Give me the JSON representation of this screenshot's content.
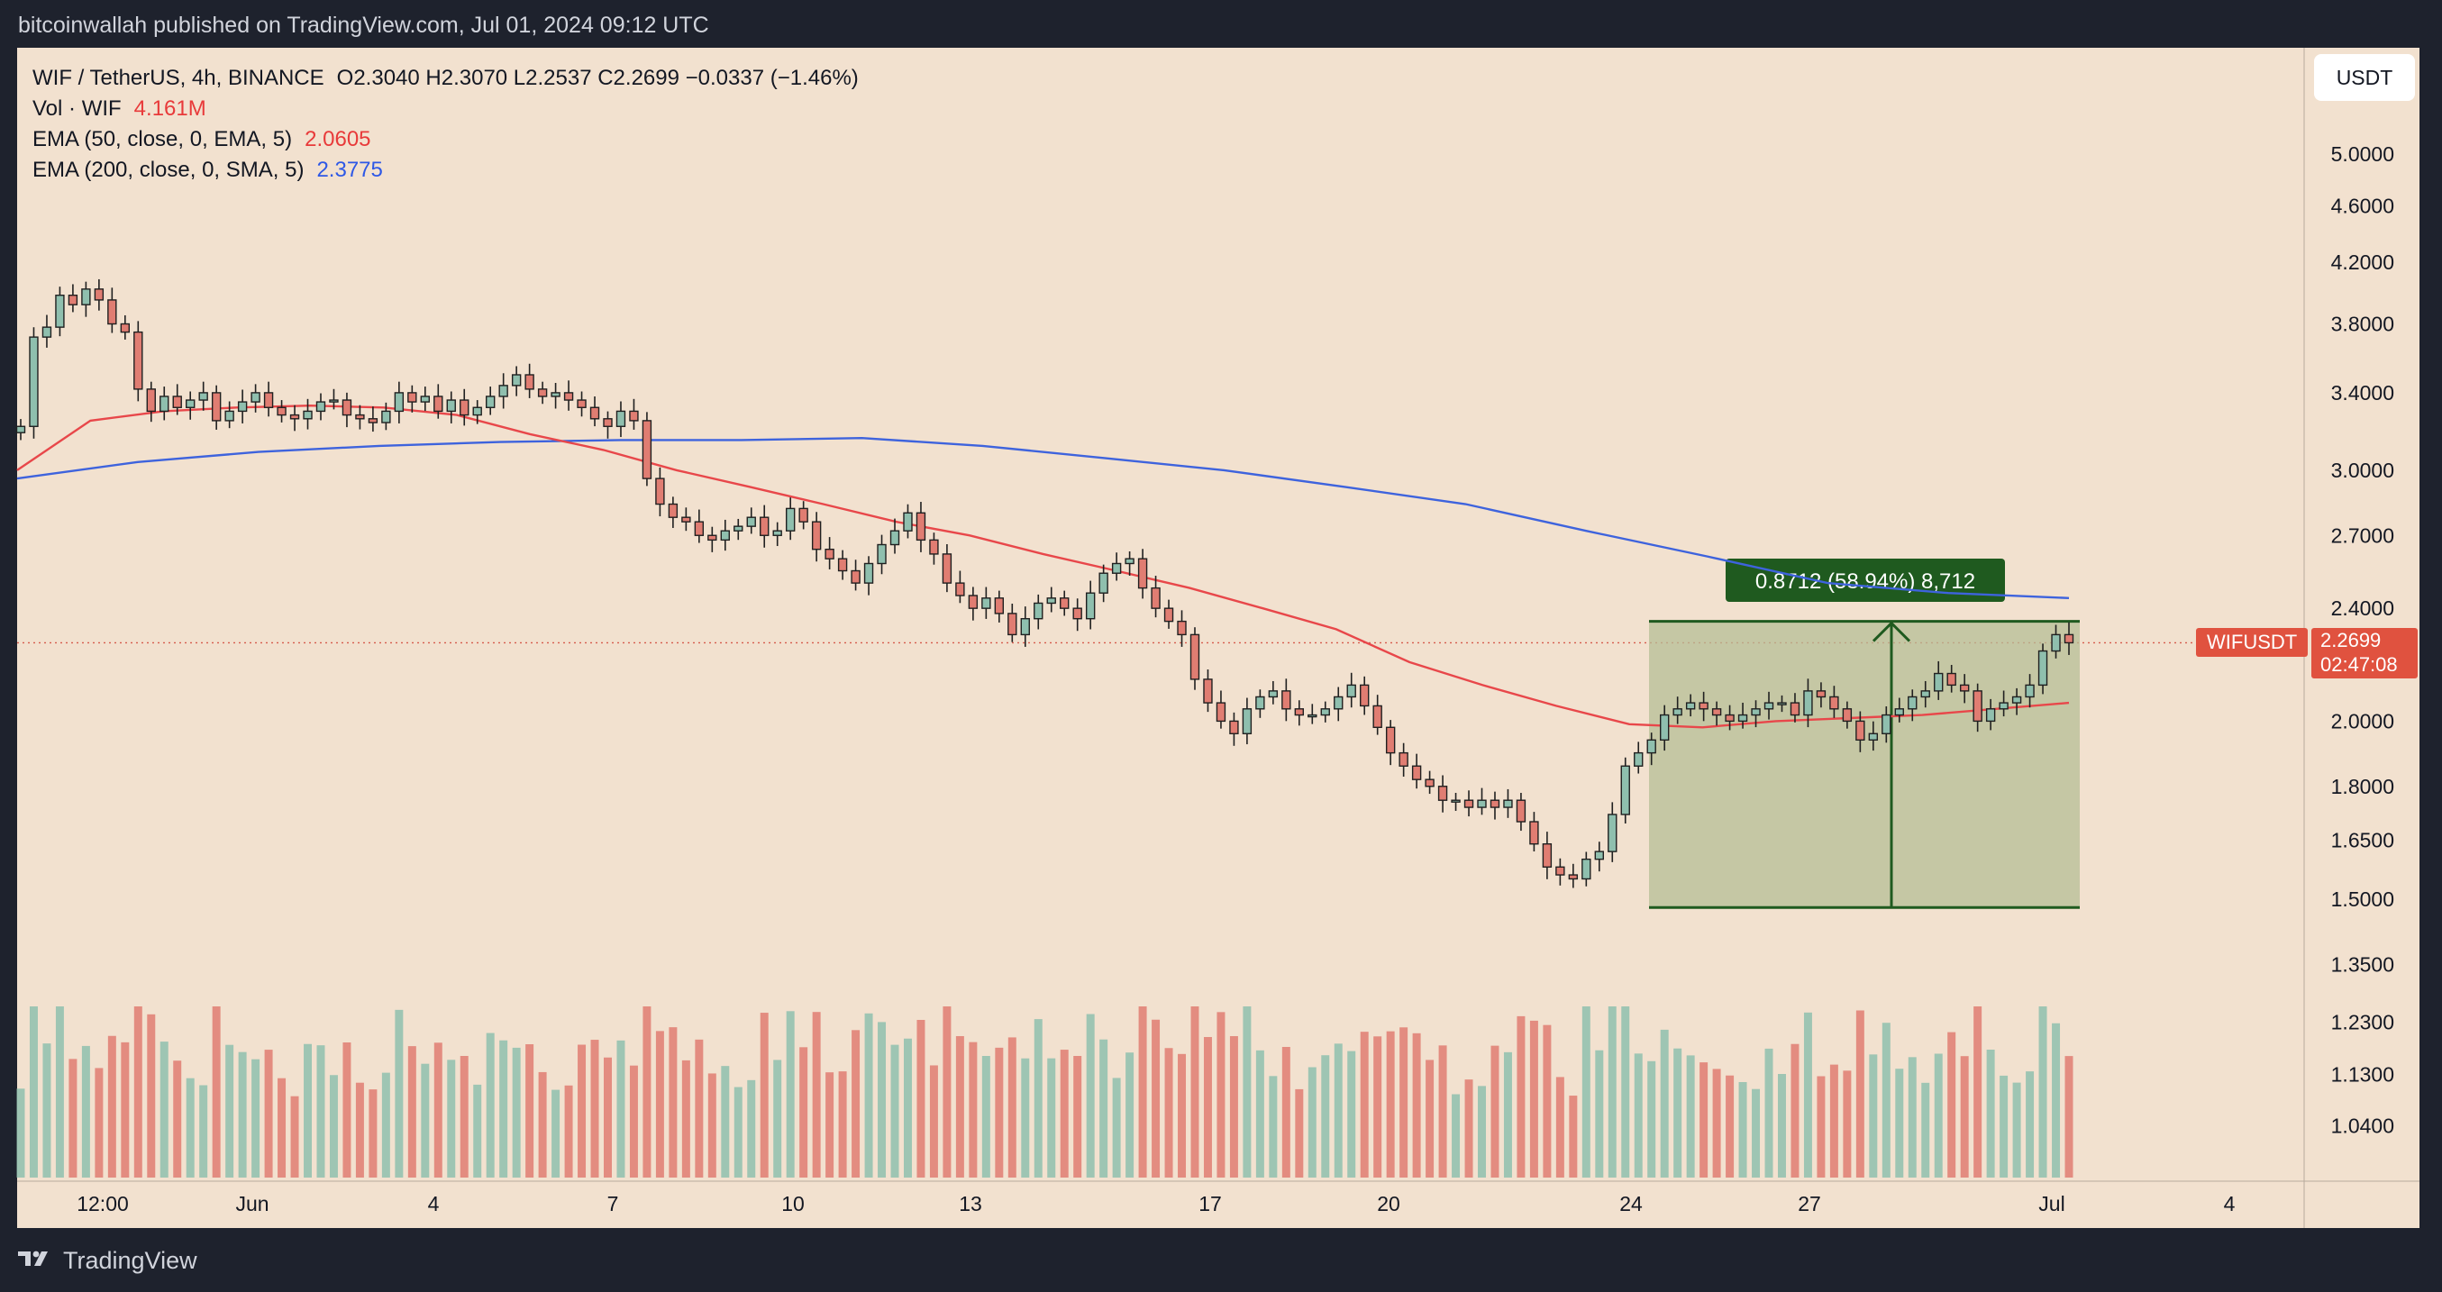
{
  "publisher_line": "bitcoinwallah published on TradingView.com, Jul 01, 2024 09:12 UTC",
  "legend": {
    "symbol": "WIF / TetherUS, 4h, BINANCE",
    "ohlc": "O2.3040 H2.3070 L2.2537 C2.2699 −0.0337 (−1.46%)",
    "vol_label": "Vol · WIF",
    "vol_value": "4.161M",
    "ema50_label": "EMA (50, close, 0, EMA, 5)",
    "ema50_value": "2.0605",
    "ema200_label": "EMA (200, close, 0, SMA, 5)",
    "ema200_value": "2.3775"
  },
  "currency_button": "USDT",
  "price_tag_symbol": "WIFUSDT",
  "price_tag_value": "2.2699",
  "price_tag_countdown": "02:47:08",
  "measure_label": "0.8712 (58.94%) 8,712",
  "footer_brand": "TradingView",
  "colors": {
    "up": "#8fbfae",
    "down": "#e07d72",
    "ema50": "#e8474a",
    "ema200": "#3e63dd",
    "measure_fill": "#b6bd96",
    "measure_line": "#1f5a1f"
  },
  "chart_data": {
    "type": "candlestick",
    "yscale": "log",
    "ylim": [
      1.0,
      5.5
    ],
    "y_ticks": [
      "5.0000",
      "4.6000",
      "4.2000",
      "3.8000",
      "3.4000",
      "3.0000",
      "2.7000",
      "2.4000",
      "2.0000",
      "1.8000",
      "1.6500",
      "1.5000",
      "1.3500",
      "1.2300",
      "1.1300",
      "1.0400"
    ],
    "x_ticks": [
      "12:00",
      "Jun",
      "4",
      "7",
      "10",
      "13",
      "17",
      "20",
      "24",
      "27",
      "Jul",
      "4"
    ],
    "closes": [
      3.22,
      3.72,
      3.78,
      3.98,
      3.92,
      4.02,
      3.95,
      3.8,
      3.75,
      3.42,
      3.3,
      3.38,
      3.32,
      3.36,
      3.4,
      3.25,
      3.3,
      3.35,
      3.4,
      3.32,
      3.28,
      3.26,
      3.3,
      3.35,
      3.36,
      3.28,
      3.26,
      3.24,
      3.3,
      3.4,
      3.35,
      3.38,
      3.3,
      3.36,
      3.28,
      3.32,
      3.38,
      3.44,
      3.5,
      3.42,
      3.38,
      3.4,
      3.36,
      3.32,
      3.26,
      3.22,
      3.3,
      3.25,
      2.96,
      2.84,
      2.78,
      2.76,
      2.7,
      2.68,
      2.72,
      2.74,
      2.78,
      2.7,
      2.72,
      2.82,
      2.76,
      2.64,
      2.6,
      2.55,
      2.5,
      2.58,
      2.66,
      2.72,
      2.8,
      2.68,
      2.62,
      2.5,
      2.45,
      2.4,
      2.44,
      2.38,
      2.3,
      2.36,
      2.42,
      2.44,
      2.4,
      2.36,
      2.46,
      2.54,
      2.58,
      2.6,
      2.48,
      2.4,
      2.35,
      2.3,
      2.14,
      2.06,
      2.0,
      1.96,
      2.04,
      2.08,
      2.1,
      2.04,
      2.02,
      2.02,
      2.04,
      2.08,
      2.12,
      2.05,
      1.98,
      1.9,
      1.86,
      1.82,
      1.8,
      1.76,
      1.76,
      1.74,
      1.76,
      1.74,
      1.76,
      1.7,
      1.64,
      1.58,
      1.56,
      1.55,
      1.6,
      1.62,
      1.72,
      1.86,
      1.9,
      1.94,
      2.02,
      2.04,
      2.06,
      2.04,
      2.02,
      2.0,
      2.02,
      2.04,
      2.06,
      2.06,
      2.02,
      2.1,
      2.08,
      2.04,
      2.0,
      1.94,
      1.96,
      2.02,
      2.04,
      2.08,
      2.1,
      2.16,
      2.12,
      2.1,
      2.0,
      2.04,
      2.06,
      2.08,
      2.12,
      2.24,
      2.3,
      2.27
    ],
    "ema50": [
      3.0,
      3.25,
      3.3,
      3.32,
      3.33,
      3.32,
      3.28,
      3.18,
      3.1,
      3.0,
      2.92,
      2.84,
      2.76,
      2.7,
      2.62,
      2.55,
      2.48,
      2.4,
      2.32,
      2.2,
      2.12,
      2.05,
      1.99,
      1.98,
      2.0,
      2.01,
      2.02,
      2.04,
      2.06
    ],
    "ema200": [
      2.96,
      3.04,
      3.09,
      3.12,
      3.14,
      3.15,
      3.15,
      3.16,
      3.12,
      3.06,
      3.0,
      2.92,
      2.84,
      2.72,
      2.61,
      2.5,
      2.46,
      2.44
    ],
    "measure": {
      "from": 1.48,
      "to": 2.35,
      "change": 0.8712,
      "change_pct": 58.94,
      "bars": 8712
    }
  }
}
